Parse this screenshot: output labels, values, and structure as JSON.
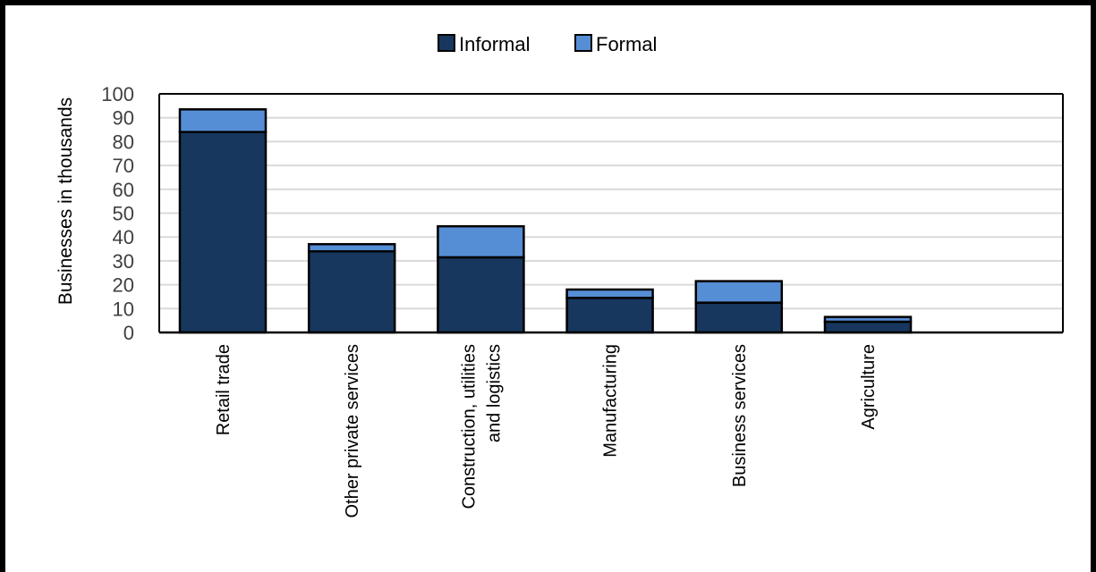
{
  "chart_data": {
    "type": "bar",
    "stacked": true,
    "categories": [
      "Retail trade",
      "Other private services",
      "Construction, utilities and logistics",
      "Manufacturing",
      "Business services",
      "Agriculture"
    ],
    "category_label_lines": [
      [
        "Retail trade"
      ],
      [
        "Other private services"
      ],
      [
        "Construction, utilities",
        "and logistics"
      ],
      [
        "Manufacturing"
      ],
      [
        "Business services"
      ],
      [
        "Agriculture"
      ]
    ],
    "series": [
      {
        "name": "Informal",
        "values": [
          84,
          34,
          31.5,
          14.5,
          12.5,
          4.5
        ],
        "color": "#17375e"
      },
      {
        "name": "Formal",
        "values": [
          9.5,
          3,
          13,
          3.5,
          9,
          2
        ],
        "color": "#558ed5"
      }
    ],
    "ylabel": "Businesses in thousands",
    "ylim": [
      0,
      100
    ],
    "yticks": [
      0,
      10,
      20,
      30,
      40,
      50,
      60,
      70,
      80,
      90,
      100
    ],
    "grid": true,
    "legend_position": "top-center",
    "title": "",
    "xlabel": ""
  }
}
